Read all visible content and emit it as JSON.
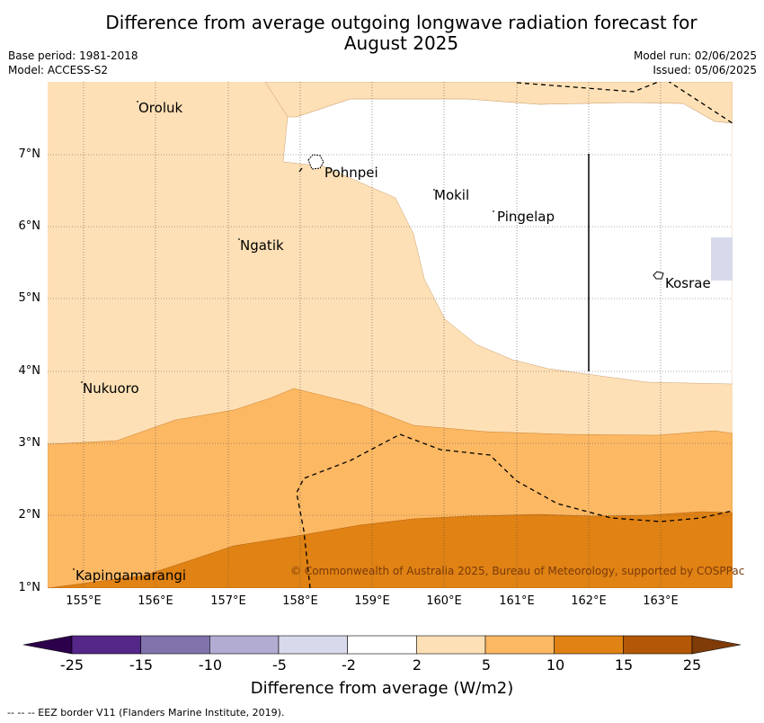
{
  "title_line1": "Difference from average outgoing longwave radiation forecast for",
  "title_line2": "August 2025",
  "meta_left": [
    "Base period: 1981-2018",
    "Model: ACCESS-S2"
  ],
  "meta_right": [
    "Model run: 02/06/2025",
    "Issued: 05/06/2025"
  ],
  "lat_labels": [
    "7°N",
    "6°N",
    "5°N",
    "4°N",
    "3°N",
    "2°N",
    "1°N"
  ],
  "lon_labels": [
    "155°E",
    "156°E",
    "157°E",
    "158°E",
    "159°E",
    "160°E",
    "161°E",
    "162°E",
    "163°E"
  ],
  "places": [
    "Oroluk",
    "Pohnpei",
    "Mokil",
    "Pingelap",
    "Ngatik",
    "Kosrae",
    "Nukuoro",
    "Kapingamarangi"
  ],
  "copyright": "© Commonwealth of Australia 2025, Bureau of Meteorology, supported by COSPPac",
  "colorbar": {
    "ticks": [
      "-25",
      "-15",
      "-10",
      "-5",
      "-2",
      "2",
      "5",
      "10",
      "15",
      "25"
    ],
    "colors": [
      "#542788",
      "#8073ac",
      "#b2abd2",
      "#d8daeb",
      "#ffffff",
      "#fee0b6",
      "#fdb863",
      "#e08214",
      "#b35806"
    ],
    "under_color": "#2d004b",
    "over_color": "#7f3b08",
    "label": "Difference from average (W/m2)"
  },
  "footnote": "--  --  -- EEZ border V11 (Flanders Marine Institute, 2019)."
}
